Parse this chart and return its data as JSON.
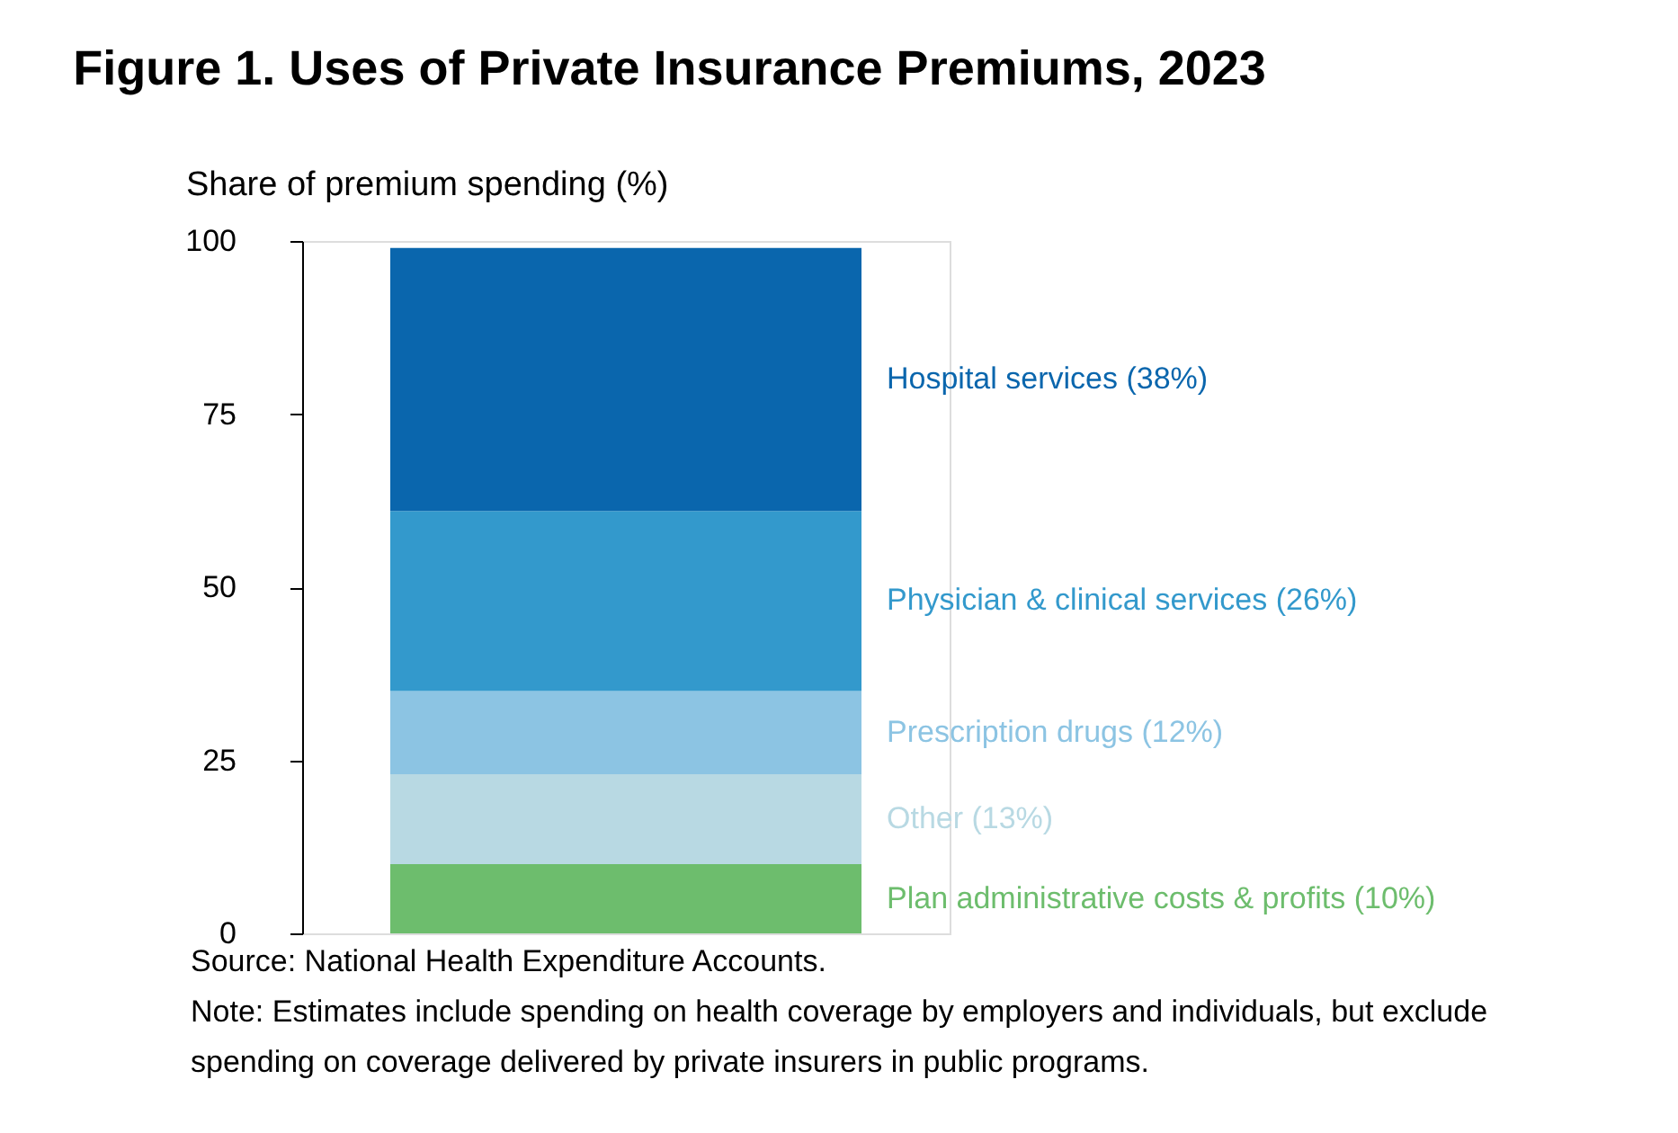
{
  "chart_data": {
    "type": "bar",
    "stacked": true,
    "title": "Figure 1. Uses of Private Insurance Premiums, 2023",
    "ylabel": "Share of premium spending (%)",
    "categories": [
      null
    ],
    "series": [
      {
        "name": "Plan administrative costs & profits (10%)",
        "color": "#6dbd6d",
        "values": [
          10
        ]
      },
      {
        "name": "Other (13%)",
        "color": "#b8d9e3",
        "values": [
          13
        ]
      },
      {
        "name": "Prescription drugs (12%)",
        "color": "#8cc4e3",
        "values": [
          12
        ]
      },
      {
        "name": "Physician & clinical services (26%)",
        "color": "#3399cc",
        "values": [
          26
        ]
      },
      {
        "name": "Hospital services (38%)",
        "color": "#0a66ad",
        "values": [
          38
        ]
      }
    ],
    "ylim": [
      0,
      100
    ],
    "yticks": [
      0,
      25,
      50,
      75,
      100
    ],
    "grid": false,
    "legend": false,
    "tick_labels": "y",
    "annotations": [
      "Source: National Health Expenditure Accounts.",
      "Note: Estimates include spending on health coverage by employers and individuals, but exclude spending on coverage delivered by private insurers in public programs."
    ]
  }
}
